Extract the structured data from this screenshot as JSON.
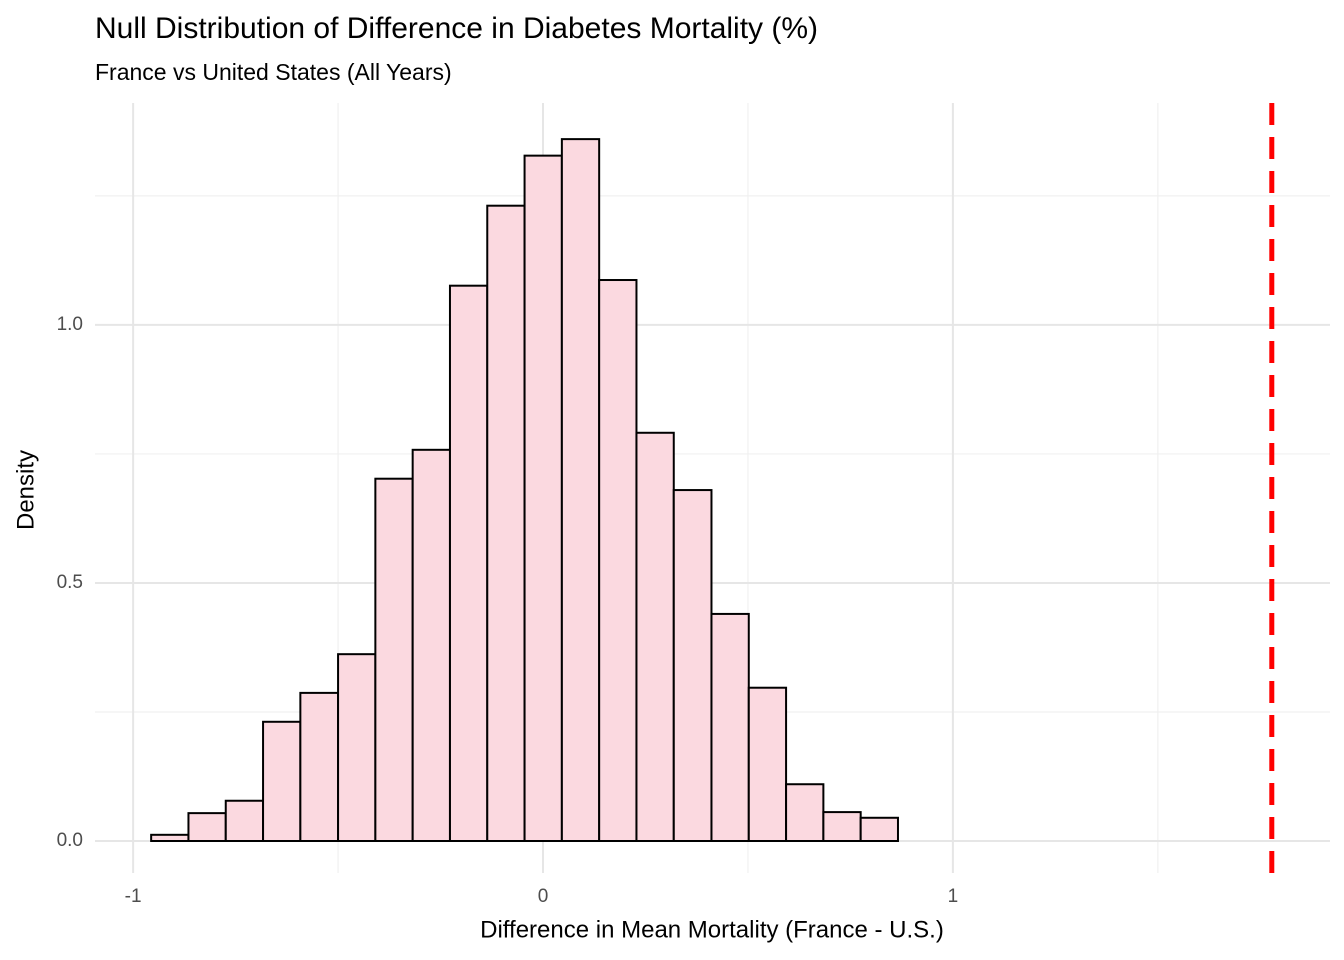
{
  "chart_data": {
    "type": "histogram",
    "title": "Null Distribution of Difference in Diabetes Mortality (%)",
    "subtitle": "France vs United States (All Years)",
    "x_label": "Difference in Mean Mortality (France - U.S.)",
    "y_label": "Density",
    "bins": [
      -0.956,
      -0.865,
      -0.774,
      -0.683,
      -0.592,
      -0.5,
      -0.409,
      -0.318,
      -0.227,
      -0.136,
      -0.045,
      0.046,
      0.137,
      0.228,
      0.319,
      0.411,
      0.502,
      0.593,
      0.684,
      0.775,
      0.866,
      0.957,
      1.048,
      1.139,
      1.23,
      1.322,
      1.413,
      1.504,
      1.595,
      1.686,
      1.778
    ],
    "values": [
      0.012,
      0.054,
      0.078,
      0.231,
      0.287,
      0.362,
      0.702,
      0.758,
      1.076,
      1.231,
      1.328,
      1.36,
      1.087,
      0.791,
      0.68,
      0.44,
      0.297,
      0.11,
      0.056,
      0.045,
      0,
      0,
      0,
      0,
      0,
      0,
      0,
      0,
      0,
      0
    ],
    "color": "#fbd9e0",
    "edge_color": "#000000",
    "xlim": [
      -1.093,
      1.92
    ],
    "xticks": [
      -1,
      0,
      1
    ],
    "x_minor_grid": [
      -0.5,
      0.5,
      1.5
    ],
    "ylim": [
      -0.062,
      1.43
    ],
    "yticks": [
      {
        "value": 0,
        "label": "0.0"
      },
      {
        "value": 0.5,
        "label": "0.5"
      },
      {
        "value": 1,
        "label": "1.0"
      }
    ],
    "y_minor_grid": [
      0.25,
      0.75,
      1.25
    ],
    "grid": true,
    "observed_line": {
      "value": 1.778,
      "color": "#ff0000"
    }
  }
}
